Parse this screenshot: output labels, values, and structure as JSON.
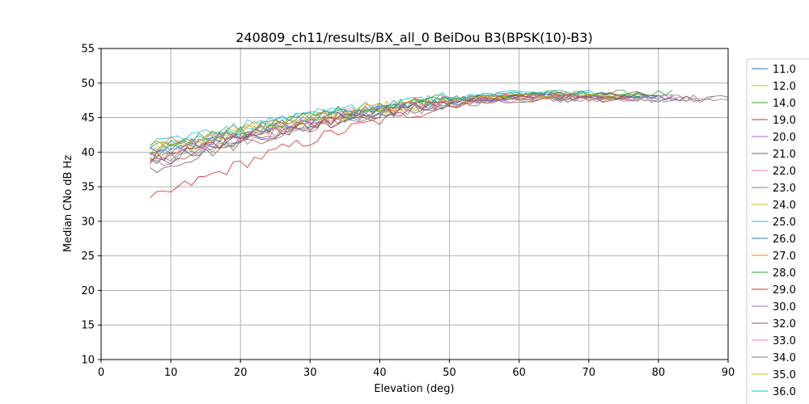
{
  "chart_data": {
    "type": "line",
    "title": "240809_ch11/results/BX_all_0 BeiDou B3(BPSK(10)-B3)",
    "xlabel": "Elevation (deg)",
    "ylabel": "Median CNo dB Hz",
    "xlim": [
      0,
      90
    ],
    "ylim": [
      10,
      55
    ],
    "xticks": [
      "0",
      "10",
      "20",
      "30",
      "40",
      "50",
      "60",
      "70",
      "80",
      "90"
    ],
    "yticks": [
      "10",
      "15",
      "20",
      "25",
      "30",
      "35",
      "40",
      "45",
      "50",
      "55"
    ],
    "grid": true,
    "legend_position": "right (outside plot, clipped)",
    "series": [
      {
        "name": "11.0",
        "color": "#1f77b4",
        "start_x": 7,
        "end_x": 82,
        "start_y": 39.5,
        "plateau": 48.0
      },
      {
        "name": "12.0",
        "color": "#bcbd22",
        "start_x": 7,
        "end_x": 78,
        "start_y": 39.0,
        "plateau": 48.2
      },
      {
        "name": "14.0",
        "color": "#2ca02c",
        "start_x": 7,
        "end_x": 82,
        "start_y": 40.5,
        "plateau": 48.5
      },
      {
        "name": "19.0",
        "color": "#d62728",
        "start_x": 7,
        "end_x": 74,
        "start_y": 33.0,
        "plateau": 48.0
      },
      {
        "name": "20.0",
        "color": "#9467bd",
        "start_x": 7,
        "end_x": 76,
        "start_y": 38.0,
        "plateau": 48.0
      },
      {
        "name": "21.0",
        "color": "#8c564b",
        "start_x": 7,
        "end_x": 80,
        "start_y": 37.5,
        "plateau": 48.3
      },
      {
        "name": "22.0",
        "color": "#e377c2",
        "start_x": 7,
        "end_x": 88,
        "start_y": 40.0,
        "plateau": 47.8
      },
      {
        "name": "23.0",
        "color": "#7f7f7f",
        "start_x": 7,
        "end_x": 90,
        "start_y": 38.5,
        "plateau": 47.8
      },
      {
        "name": "24.0",
        "color": "#bcbd22",
        "start_x": 7,
        "end_x": 73,
        "start_y": 40.2,
        "plateau": 48.0
      },
      {
        "name": "25.0",
        "color": "#17becf",
        "start_x": 7,
        "end_x": 72,
        "start_y": 40.5,
        "plateau": 48.6
      },
      {
        "name": "26.0",
        "color": "#1f77b4",
        "start_x": 7,
        "end_x": 80,
        "start_y": 39.8,
        "plateau": 48.2
      },
      {
        "name": "27.0",
        "color": "#ff7f0e",
        "start_x": 7,
        "end_x": 75,
        "start_y": 40.8,
        "plateau": 48.0
      },
      {
        "name": "28.0",
        "color": "#2ca02c",
        "start_x": 7,
        "end_x": 78,
        "start_y": 40.0,
        "plateau": 48.4
      },
      {
        "name": "29.0",
        "color": "#d62728",
        "start_x": 7,
        "end_x": 76,
        "start_y": 38.8,
        "plateau": 48.2
      },
      {
        "name": "30.0",
        "color": "#9467bd",
        "start_x": 7,
        "end_x": 84,
        "start_y": 39.2,
        "plateau": 47.9
      },
      {
        "name": "32.0",
        "color": "#8c564b",
        "start_x": 7,
        "end_x": 86,
        "start_y": 38.2,
        "plateau": 47.7
      },
      {
        "name": "33.0",
        "color": "#e377c2",
        "start_x": 7,
        "end_x": 72,
        "start_y": 39.6,
        "plateau": 48.3
      },
      {
        "name": "34.0",
        "color": "#7f7f7f",
        "start_x": 7,
        "end_x": 90,
        "start_y": 38.6,
        "plateau": 47.6
      },
      {
        "name": "35.0",
        "color": "#bcbd22",
        "start_x": 7,
        "end_x": 74,
        "start_y": 40.4,
        "plateau": 48.1
      },
      {
        "name": "36.0",
        "color": "#17becf",
        "start_x": 7,
        "end_x": 70,
        "start_y": 41.0,
        "plateau": 48.5
      }
    ]
  }
}
